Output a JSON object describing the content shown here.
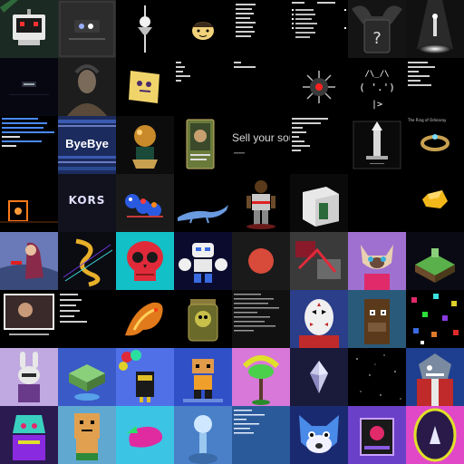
{
  "gallery": {
    "name": "nft-thumbnail-grid",
    "tiles": [
      {
        "id": "r1c1",
        "icon": "pixel-robot-icon",
        "bg": "#1b2a22"
      },
      {
        "id": "r1c2",
        "icon": "app-icons-card-icon",
        "bg": "#2a2a2a"
      },
      {
        "id": "r1c3",
        "icon": "sword-figure-icon",
        "bg": "#000000"
      },
      {
        "id": "r1c4",
        "icon": "cartoon-face-icon",
        "bg": "#000000"
      },
      {
        "id": "r1c5",
        "icon": "white-list-icon",
        "bg": "#000000"
      },
      {
        "id": "r1c6",
        "icon": "checklist-icon",
        "bg": "#000000"
      },
      {
        "id": "r1c7",
        "icon": "mystery-box-icon",
        "bg": "#1a1a1a"
      },
      {
        "id": "r1c8",
        "icon": "spotlight-figure-icon",
        "bg": "#111111"
      },
      {
        "id": "r2c1",
        "icon": "dark-night-icon",
        "bg": "#070712"
      },
      {
        "id": "r2c2",
        "icon": "portrait-icon",
        "bg": "#222222"
      },
      {
        "id": "r2c3",
        "icon": "yellow-cube-face-icon",
        "bg": "#000000"
      },
      {
        "id": "r2c4",
        "icon": "text-note-icon",
        "bg": "#000000"
      },
      {
        "id": "r2c5",
        "icon": "text-note-icon",
        "bg": "#000000"
      },
      {
        "id": "r2c6",
        "icon": "spiky-mine-icon",
        "bg": "#000000"
      },
      {
        "id": "r2c7",
        "icon": "ascii-face-icon",
        "bg": "#000000"
      },
      {
        "id": "r2c8",
        "icon": "attribute-list-icon",
        "bg": "#000000"
      },
      {
        "id": "r3c1",
        "icon": "blue-text-list-icon",
        "bg": "#000000"
      },
      {
        "id": "r3c2",
        "icon": "bye-bye-banner-icon",
        "bg": "#1b2b5e",
        "text": "ByeBye"
      },
      {
        "id": "r3c3",
        "icon": "potion-sculpture-icon",
        "bg": "#0c0c0c"
      },
      {
        "id": "r3c4",
        "icon": "collectible-card-icon",
        "bg": "#000000"
      },
      {
        "id": "r3c5",
        "icon": "headline-icon",
        "bg": "#000000",
        "text": "Sell your sou"
      },
      {
        "id": "r3c6",
        "icon": "property-list-icon",
        "bg": "#000000"
      },
      {
        "id": "r3c7",
        "icon": "tower-icon",
        "bg": "#000000"
      },
      {
        "id": "r3c8",
        "icon": "ring-icon",
        "bg": "#000000",
        "text": "The Ring of Odinaray"
      },
      {
        "id": "r4c1",
        "icon": "orange-portal-icon",
        "bg": "#000000"
      },
      {
        "id": "r4c2",
        "icon": "kors-logo-icon",
        "bg": "#12121e",
        "text": "KORS"
      },
      {
        "id": "r4c3",
        "icon": "blue-caterpillar-icon",
        "bg": "#1a1a1a"
      },
      {
        "id": "r4c4",
        "icon": "lizard-icon",
        "bg": "#000000"
      },
      {
        "id": "r4c5",
        "icon": "action-figure-icon",
        "bg": "#000000"
      },
      {
        "id": "r4c6",
        "icon": "white-block-icon",
        "bg": "#0a0a0a"
      },
      {
        "id": "r4c7",
        "icon": "blank-icon",
        "bg": "#000000"
      },
      {
        "id": "r4c8",
        "icon": "gold-nugget-icon",
        "bg": "#000000"
      },
      {
        "id": "r5c1",
        "icon": "singer-painting-icon",
        "bg": "#5a6aa0"
      },
      {
        "id": "r5c2",
        "icon": "gold-dragon-icon",
        "bg": "#0b0b12"
      },
      {
        "id": "r5c3",
        "icon": "red-skull-icon",
        "bg": "#11c1c3"
      },
      {
        "id": "r5c4",
        "icon": "white-robot-icon",
        "bg": "#0b0b2e"
      },
      {
        "id": "r5c5",
        "icon": "red-circle-icon",
        "bg": "#1a1a1a"
      },
      {
        "id": "r5c6",
        "icon": "abstract-collage-icon",
        "bg": "#2a2a2a"
      },
      {
        "id": "r5c7",
        "icon": "siamese-cat-icon",
        "bg": "#9a6ac8"
      },
      {
        "id": "r5c8",
        "icon": "voxel-island-icon",
        "bg": "#0a0a14"
      },
      {
        "id": "r6c1",
        "icon": "video-frame-icon",
        "bg": "#000000"
      },
      {
        "id": "r6c2",
        "icon": "stats-card-icon",
        "bg": "#000000"
      },
      {
        "id": "r6c3",
        "icon": "fire-dragon-icon",
        "bg": "#000000"
      },
      {
        "id": "r6c4",
        "icon": "monster-jar-icon",
        "bg": "#000000"
      },
      {
        "id": "r6c5",
        "icon": "terminal-code-icon",
        "bg": "#111111"
      },
      {
        "id": "r6c6",
        "icon": "hockey-mask-icon",
        "bg": "#2b3e8a"
      },
      {
        "id": "r6c7",
        "icon": "pixel-ape-icon",
        "bg": "#234a6a"
      },
      {
        "id": "r6c8",
        "icon": "pixel-dots-icon",
        "bg": "#000000"
      },
      {
        "id": "r7c1",
        "icon": "rabbit-icon",
        "bg": "#b8a0d8"
      },
      {
        "id": "r7c2",
        "icon": "voxel-chip-icon",
        "bg": "#3a5ac8"
      },
      {
        "id": "r7c3",
        "icon": "balloon-character-icon",
        "bg": "#4a6ae8"
      },
      {
        "id": "r7c4",
        "icon": "pixel-boy-icon",
        "bg": "#2a4ac0"
      },
      {
        "id": "r7c5",
        "icon": "hair-totem-icon",
        "bg": "#d070d0"
      },
      {
        "id": "r7c6",
        "icon": "crystal-icon",
        "bg": "#1a1a3a"
      },
      {
        "id": "r7c7",
        "icon": "starfield-icon",
        "bg": "#000000"
      },
      {
        "id": "r7c8",
        "icon": "shark-pirate-icon",
        "bg": "#1a3a8a"
      },
      {
        "id": "r8c1",
        "icon": "neon-warrior-icon",
        "bg": "#2a1a4a"
      },
      {
        "id": "r8c2",
        "icon": "orange-pixel-man-icon",
        "bg": "#5aa0c8"
      },
      {
        "id": "r8c3",
        "icon": "eggplant-icon",
        "bg": "#3ac0e0"
      },
      {
        "id": "r8c4",
        "icon": "blue-blob-icon",
        "bg": "#4a7ac0"
      },
      {
        "id": "r8c5",
        "icon": "blue-text-card-icon",
        "bg": "#2a5a9a"
      },
      {
        "id": "r8c6",
        "icon": "blue-fox-icon",
        "bg": "#1a2a6a"
      },
      {
        "id": "r8c7",
        "icon": "purple-frame-icon",
        "bg": "#6a3ac8"
      },
      {
        "id": "r8c8",
        "icon": "neon-oval-icon",
        "bg": "#e040c0"
      }
    ]
  }
}
